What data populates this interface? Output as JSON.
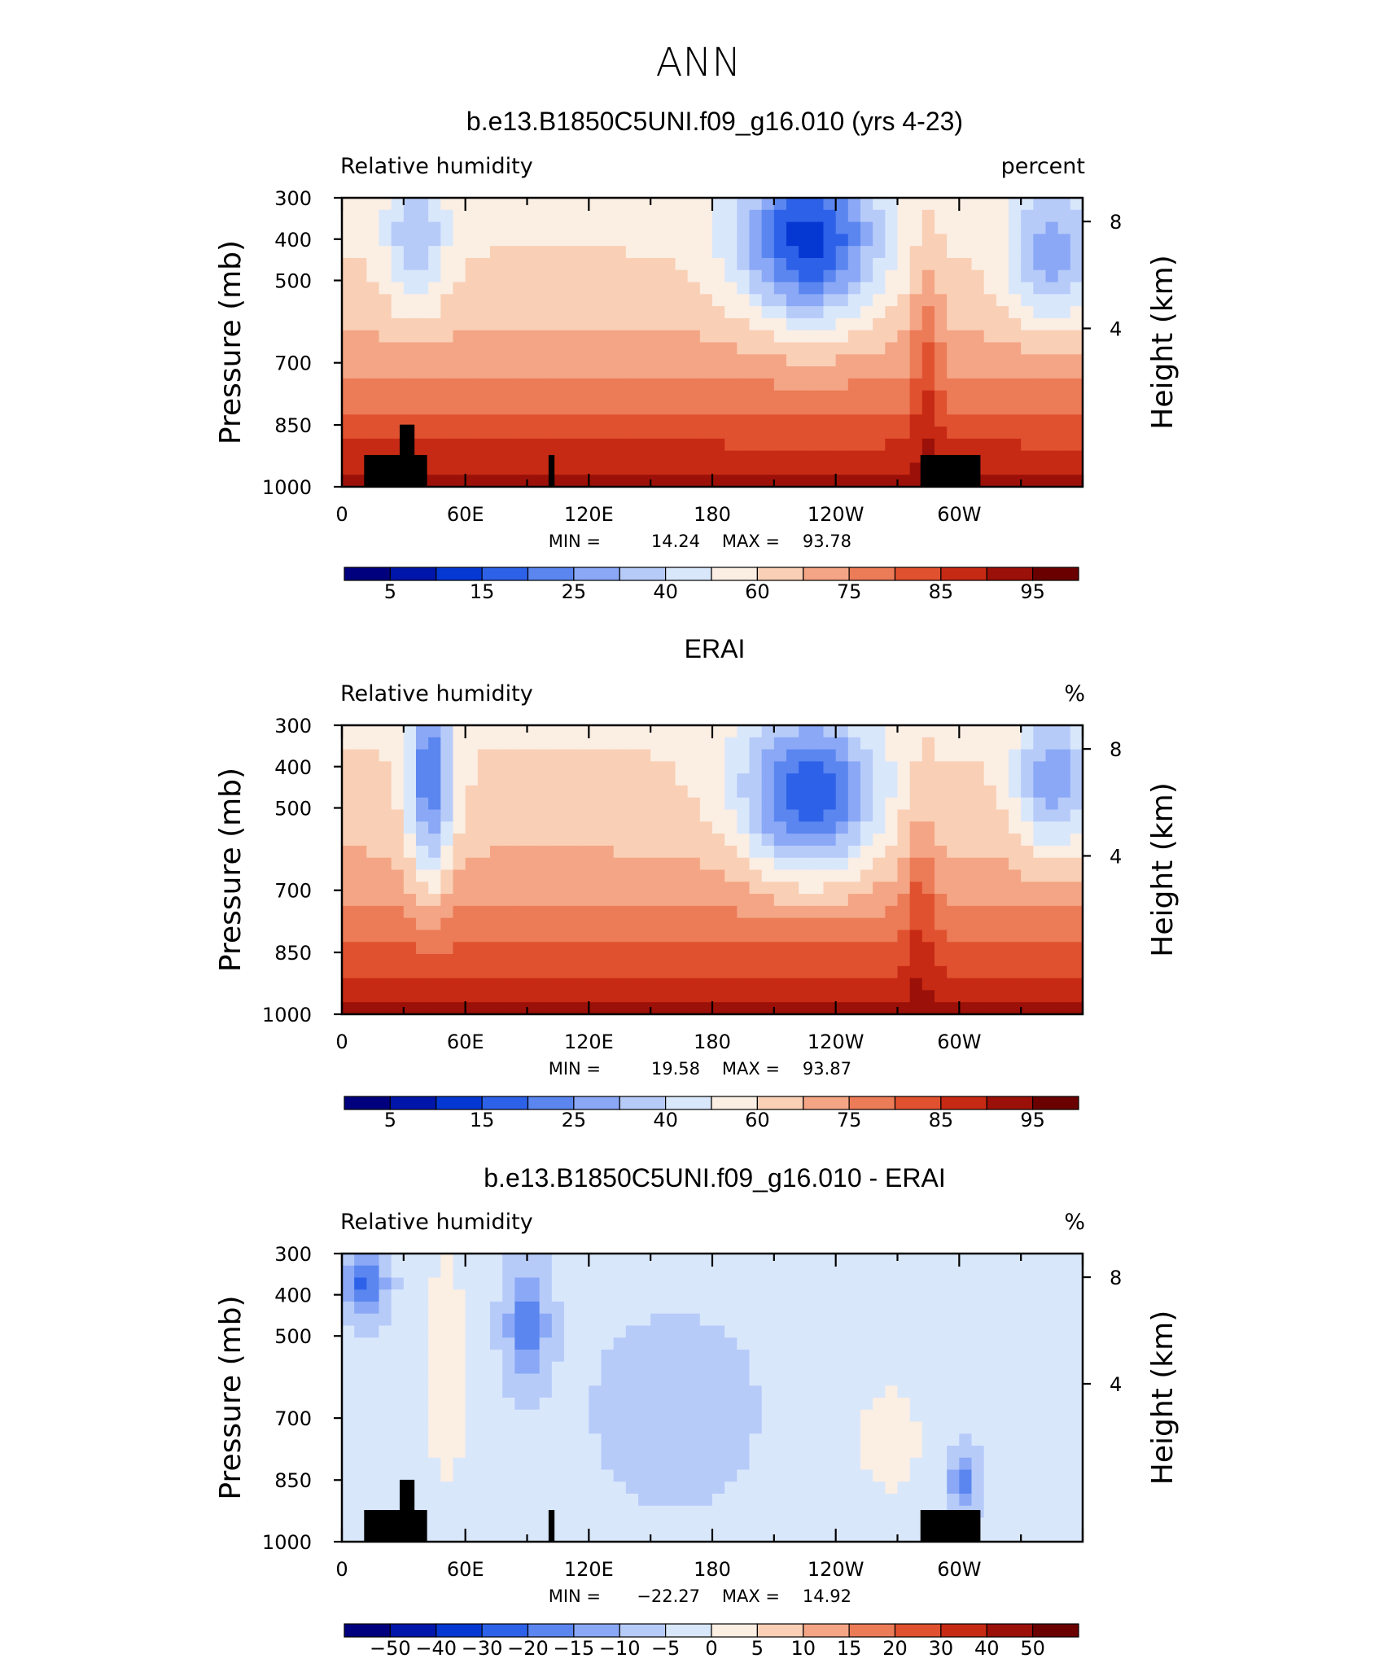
{
  "page_title": "ANN",
  "colors": {
    "rh_levels": [
      "#00007f",
      "#0015a9",
      "#0538d3",
      "#2d61e8",
      "#5b86f0",
      "#8aa8f5",
      "#b7cbf9",
      "#d9e7fb",
      "#fbeee3",
      "#f9cfb5",
      "#f4a585",
      "#ec7b57",
      "#e0512f",
      "#c72a14",
      "#9b1008",
      "#6b0000"
    ],
    "diff_levels": [
      "#00007f",
      "#0015a9",
      "#0538d3",
      "#2d61e8",
      "#5b86f0",
      "#8aa8f5",
      "#b7cbf9",
      "#d9e7fb",
      "#fbeee3",
      "#f9cfb5",
      "#f4a585",
      "#ec7b57",
      "#e0512f",
      "#c72a14",
      "#9b1008",
      "#6b0000"
    ],
    "topography": "#000000"
  },
  "chart_data": [
    {
      "type": "heatmap",
      "title": "b.e13.B1850C5UNI.f09_g16.010 (yrs 4-23)",
      "left_label": "Relative humidity",
      "right_label": "percent",
      "ylabel": "Pressure (mb)",
      "y2label": "Height (km)",
      "x_ticks": [
        "0",
        "60E",
        "120E",
        "180",
        "120W",
        "60W"
      ],
      "y_ticks": [
        "300",
        "400",
        "500",
        "700",
        "850",
        "1000"
      ],
      "y2_ticks": [
        "8",
        "4"
      ],
      "stats": {
        "min_label": "MIN =",
        "min": "14.24",
        "max_label": "MAX =",
        "max": "93.78"
      },
      "colorbar_labels": [
        "5",
        "15",
        "25",
        "40",
        "60",
        "75",
        "85",
        "95"
      ],
      "field": "model",
      "topography": true
    },
    {
      "type": "heatmap",
      "title": "ERAI",
      "left_label": "Relative humidity",
      "right_label": "%",
      "ylabel": "Pressure (mb)",
      "y2label": "Height (km)",
      "x_ticks": [
        "0",
        "60E",
        "120E",
        "180",
        "120W",
        "60W"
      ],
      "y_ticks": [
        "300",
        "400",
        "500",
        "700",
        "850",
        "1000"
      ],
      "y2_ticks": [
        "8",
        "4"
      ],
      "stats": {
        "min_label": "MIN =",
        "min": "19.58",
        "max_label": "MAX =",
        "max": "93.87"
      },
      "colorbar_labels": [
        "5",
        "15",
        "25",
        "40",
        "60",
        "75",
        "85",
        "95"
      ],
      "field": "obs",
      "topography": false
    },
    {
      "type": "heatmap",
      "title": "b.e13.B1850C5UNI.f09_g16.010 - ERAI",
      "left_label": "Relative humidity",
      "right_label": "%",
      "ylabel": "Pressure (mb)",
      "y2label": "Height (km)",
      "x_ticks": [
        "0",
        "60E",
        "120E",
        "180",
        "120W",
        "60W"
      ],
      "y_ticks": [
        "300",
        "400",
        "500",
        "700",
        "850",
        "1000"
      ],
      "y2_ticks": [
        "8",
        "4"
      ],
      "stats": {
        "min_label": "MIN =",
        "min": "−22.27",
        "max_label": "MAX =",
        "max": "14.92"
      },
      "colorbar_labels": [
        "−50",
        "−40",
        "−30",
        "−20",
        "−15",
        "−10",
        "−5",
        "0",
        "5",
        "10",
        "15",
        "20",
        "30",
        "40",
        "50"
      ],
      "field": "diff",
      "topography": true
    }
  ]
}
